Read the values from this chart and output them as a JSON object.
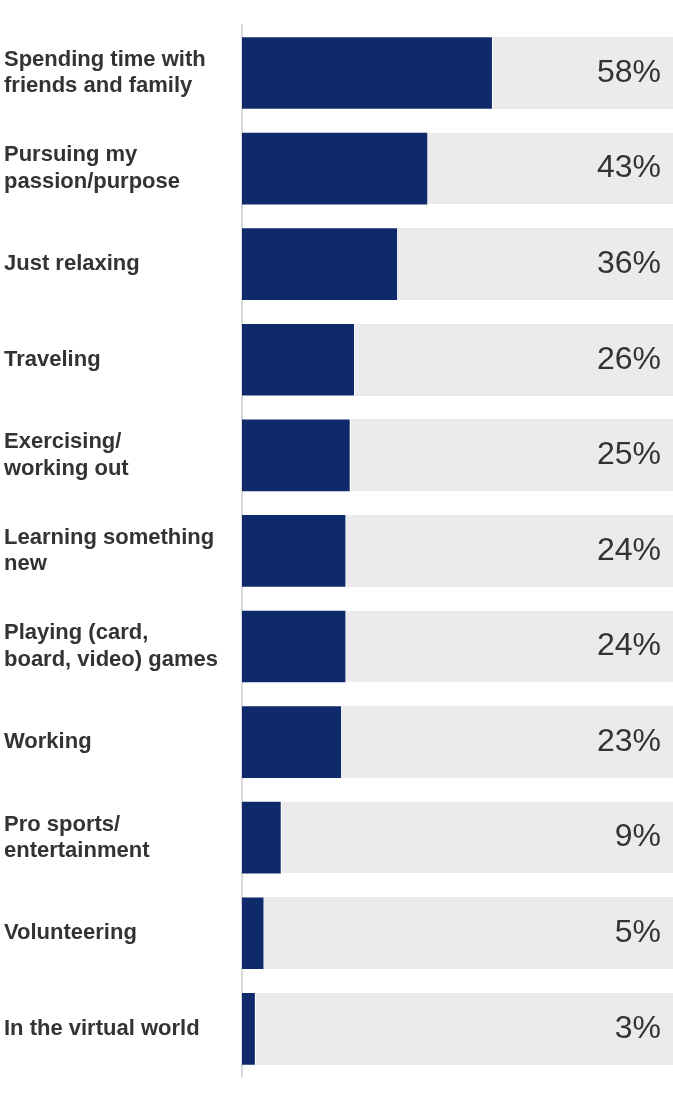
{
  "chart_data": {
    "type": "bar",
    "orientation": "horizontal",
    "categories": [
      "Spending time with friends and family",
      "Pursuing my passion/purpose",
      "Just relaxing",
      "Traveling",
      "Exercising/ working out",
      "Learning something new",
      "Playing (card, board, video) games",
      "Working",
      "Pro sports/ entertainment",
      "Volunteering",
      "In the virtual world"
    ],
    "values": [
      58,
      43,
      36,
      26,
      25,
      24,
      24,
      23,
      9,
      5,
      3
    ],
    "value_labels": [
      "58%",
      "43%",
      "36%",
      "26%",
      "25%",
      "24%",
      "24%",
      "23%",
      "9%",
      "5%",
      "3%"
    ],
    "color": "#0f2a6b",
    "xlim": [
      0,
      100
    ],
    "tick_labels": "y",
    "grid": false,
    "legend": false
  }
}
